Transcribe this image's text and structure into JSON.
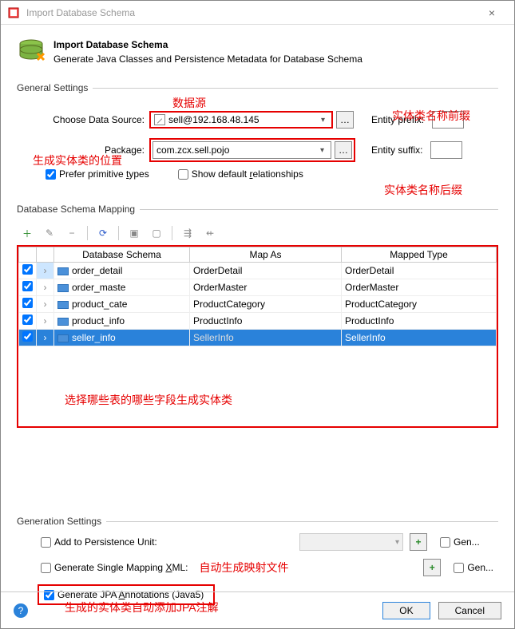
{
  "window": {
    "title": "Import Database Schema"
  },
  "header": {
    "title": "Import Database Schema",
    "subtitle": "Generate Java Classes and Persistence Metadata for Database Schema"
  },
  "annotations": {
    "data_source": "数据源",
    "entity_prefix": "实体类名称前缀",
    "entity_location": "生成实体类的位置",
    "entity_suffix": "实体类名称后缀",
    "choose_fields": "选择哪些表的哪些字段生成实体类",
    "auto_mapping": "自动生成映射文件",
    "jpa_annotation": "生成的实体类自动添加JPA注解"
  },
  "general": {
    "section_title": "General Settings",
    "data_source_label": "Choose Data Source:",
    "data_source_value": "sell@192.168.48.145",
    "package_label": "Package:",
    "package_value": "com.zcx.sell.pojo",
    "entity_prefix_label": "Entity prefix:",
    "entity_prefix_value": "",
    "entity_suffix_label": "Entity suffix:",
    "entity_suffix_value": "",
    "prefer_primitive": "Prefer primitive types",
    "show_default_rel": "Show default relationships"
  },
  "mapping": {
    "section_title": "Database Schema Mapping",
    "columns": {
      "c1": "Database Schema",
      "c2": "Map As",
      "c3": "Mapped Type"
    },
    "rows": [
      {
        "schema": "order_detail",
        "map_as": "OrderDetail",
        "mapped_type": "OrderDetail",
        "selected": false,
        "expanded_hl": true
      },
      {
        "schema": "order_maste",
        "map_as": "OrderMaster",
        "mapped_type": "OrderMaster",
        "selected": false,
        "expanded_hl": false
      },
      {
        "schema": "product_cate",
        "map_as": "ProductCategory",
        "mapped_type": "ProductCategory",
        "selected": false,
        "expanded_hl": false
      },
      {
        "schema": "product_info",
        "map_as": "ProductInfo",
        "mapped_type": "ProductInfo",
        "selected": false,
        "expanded_hl": false
      },
      {
        "schema": "seller_info",
        "map_as": "SellerInfo",
        "mapped_type": "SellerInfo",
        "selected": true,
        "expanded_hl": false
      }
    ]
  },
  "generation": {
    "section_title": "Generation Settings",
    "add_persistence": "Add to Persistence Unit:",
    "single_mapping_pre": "Generate Single Mapping ",
    "single_mapping_u": "X",
    "single_mapping_post": "ML:",
    "gen_jpa_pre": "Generate JPA ",
    "gen_jpa_u": "A",
    "gen_jpa_post": "nnotations (Java5)",
    "gen_short": "Gen..."
  },
  "footer": {
    "ok": "OK",
    "cancel": "Cancel"
  },
  "colors": {
    "red": "#e60000",
    "blue_sel": "#2a82da"
  }
}
